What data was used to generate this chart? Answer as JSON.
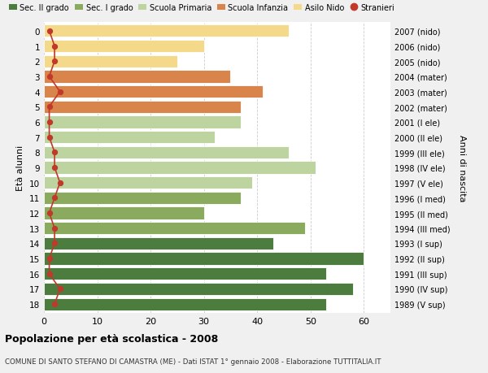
{
  "ages": [
    18,
    17,
    16,
    15,
    14,
    13,
    12,
    11,
    10,
    9,
    8,
    7,
    6,
    5,
    4,
    3,
    2,
    1,
    0
  ],
  "years": [
    "1989 (V sup)",
    "1990 (IV sup)",
    "1991 (III sup)",
    "1992 (II sup)",
    "1993 (I sup)",
    "1994 (III med)",
    "1995 (II med)",
    "1996 (I med)",
    "1997 (V ele)",
    "1998 (IV ele)",
    "1999 (III ele)",
    "2000 (II ele)",
    "2001 (I ele)",
    "2002 (mater)",
    "2003 (mater)",
    "2004 (mater)",
    "2005 (nido)",
    "2006 (nido)",
    "2007 (nido)"
  ],
  "values": [
    53,
    58,
    53,
    60,
    43,
    49,
    30,
    37,
    39,
    51,
    46,
    32,
    37,
    37,
    41,
    35,
    25,
    30,
    46
  ],
  "stranieri": [
    2,
    3,
    1,
    1,
    2,
    2,
    1,
    2,
    3,
    2,
    2,
    1,
    1,
    1,
    3,
    1,
    2,
    2,
    1
  ],
  "bar_colors": [
    "#4d7c3f",
    "#4d7c3f",
    "#4d7c3f",
    "#4d7c3f",
    "#4d7c3f",
    "#8aab5e",
    "#8aab5e",
    "#8aab5e",
    "#bdd4a0",
    "#bdd4a0",
    "#bdd4a0",
    "#bdd4a0",
    "#bdd4a0",
    "#d9844a",
    "#d9844a",
    "#d9844a",
    "#f5d98b",
    "#f5d98b",
    "#f5d98b"
  ],
  "legend_labels": [
    "Sec. II grado",
    "Sec. I grado",
    "Scuola Primaria",
    "Scuola Infanzia",
    "Asilo Nido",
    "Stranieri"
  ],
  "legend_colors": [
    "#4d7c3f",
    "#8aab5e",
    "#bdd4a0",
    "#d9844a",
    "#f5d98b",
    "#c0392b"
  ],
  "stranieri_color": "#c0392b",
  "title": "Popolazione per età scolastica - 2008",
  "subtitle": "COMUNE DI SANTO STEFANO DI CAMASTRA (ME) - Dati ISTAT 1° gennaio 2008 - Elaborazione TUTTITALIA.IT",
  "ylabel_left": "Età alunni",
  "ylabel_right": "Anni di nascita",
  "xlim": [
    0,
    65
  ],
  "xticks": [
    0,
    10,
    20,
    30,
    40,
    50,
    60
  ],
  "bg_color": "#f0f0f0",
  "plot_bg_color": "#ffffff",
  "grid_color": "#cccccc"
}
